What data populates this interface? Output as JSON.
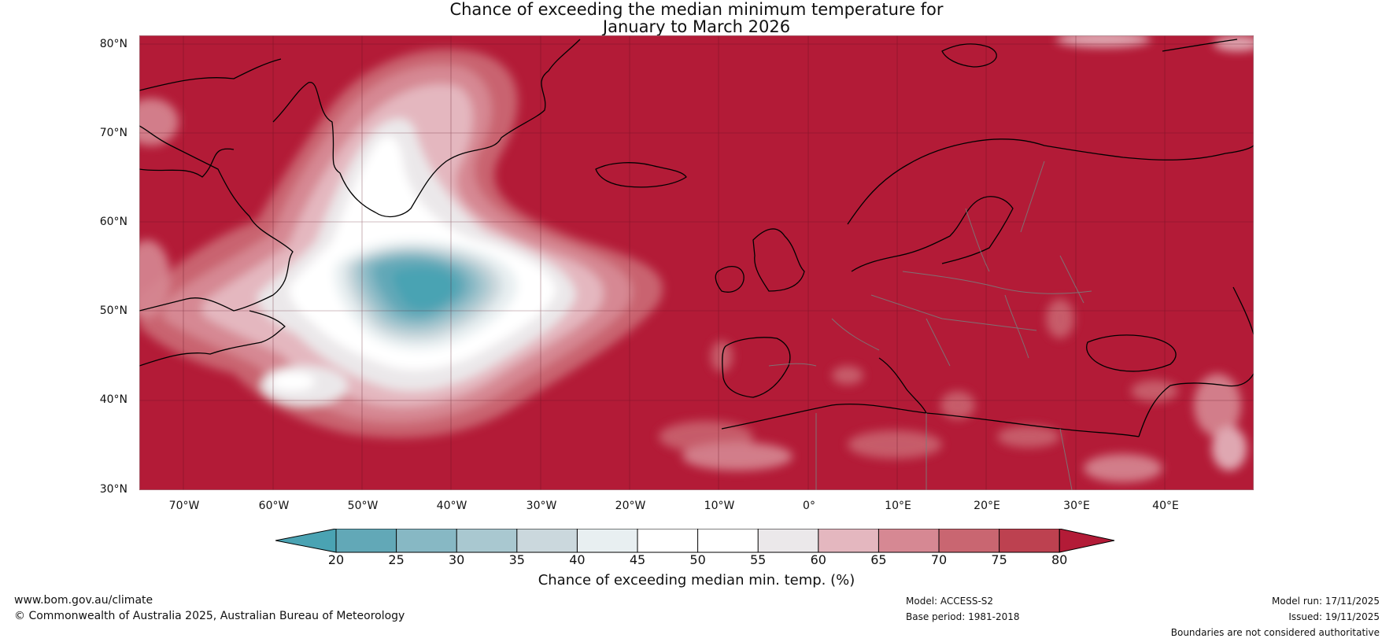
{
  "title": {
    "line1": "Chance of exceeding the median minimum temperature for",
    "line2": "January to March 2026"
  },
  "axes": {
    "lat_labels": [
      "80°N",
      "70°N",
      "60°N",
      "50°N",
      "40°N",
      "30°N"
    ],
    "lon_labels": [
      "70°W",
      "60°W",
      "50°W",
      "40°W",
      "30°W",
      "20°W",
      "10°W",
      "0°",
      "10°E",
      "20°E",
      "30°E",
      "40°E"
    ]
  },
  "map": {
    "region": "North Atlantic and Europe",
    "lat_range": [
      30,
      81
    ],
    "lon_range": [
      -75,
      50
    ],
    "base_color": "#b31b37"
  },
  "colorbar": {
    "label": "Chance of exceeding median min. temp. (%)",
    "ticks": [
      "20",
      "25",
      "30",
      "35",
      "40",
      "45",
      "50",
      "55",
      "60",
      "65",
      "70",
      "75",
      "80"
    ],
    "under_color": "#4aa3b3",
    "over_color": "#b31b37",
    "colors": [
      "#62a8b7",
      "#87b8c4",
      "#a9c8d0",
      "#cbd8dd",
      "#e8eff1",
      "#ffffff",
      "#ffffff",
      "#ebe8ea",
      "#e4b7bf",
      "#d68893",
      "#c96671",
      "#bd4150"
    ]
  },
  "footer": {
    "url": "www.bom.gov.au/climate",
    "copyright": "© Commonwealth of Australia 2025, Australian Bureau of Meteorology",
    "model": "Model: ACCESS-S2",
    "base_period": "Base period: 1981-2018",
    "model_run": "Model run: 17/11/2025",
    "issued": "Issued: 19/11/2025",
    "disclaimer": "Boundaries are not considered authoritative"
  }
}
